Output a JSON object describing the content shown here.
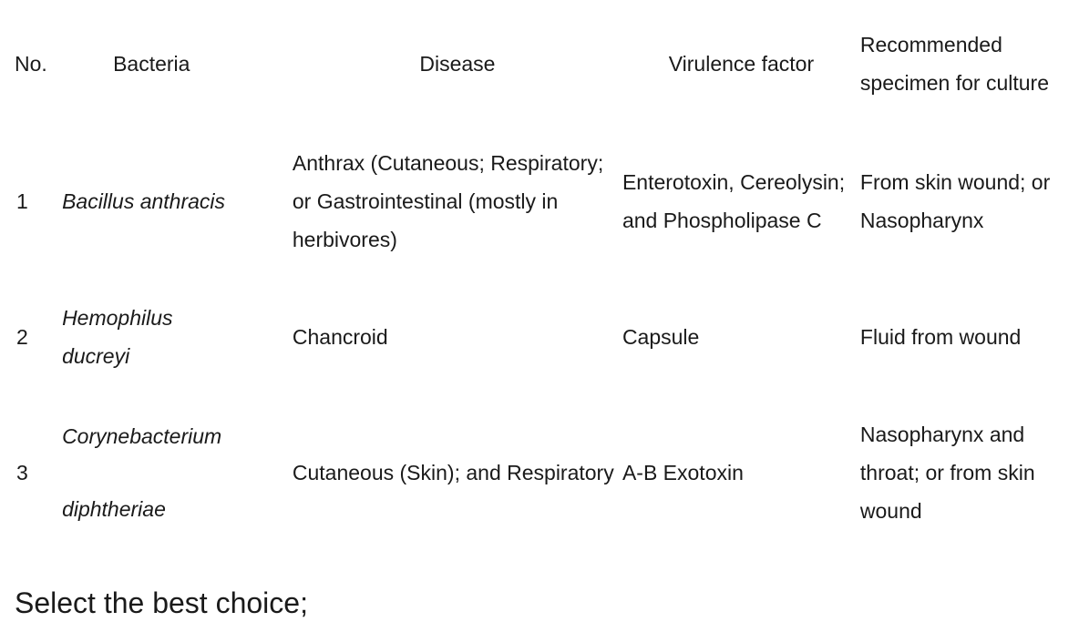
{
  "table": {
    "headers": {
      "no": "No.",
      "bacteria": "Bacteria",
      "disease": "Disease",
      "virulence": "Virulence factor",
      "specimen_line1": "Recommended",
      "specimen_line2": "specimen for culture"
    },
    "rows": [
      {
        "no": "1",
        "bacteria_line1": "Bacillus anthracis",
        "bacteria_line2": "",
        "disease_line1": "Anthrax (Cutaneous; Respiratory;",
        "disease_line2": "or Gastrointestinal (mostly in",
        "disease_line3": "herbivores)",
        "virulence_line1": "Enterotoxin, Cereolysin;",
        "virulence_line2": "and Phospholipase C",
        "specimen_line1": "From skin wound; or",
        "specimen_line2": "Nasopharynx",
        "specimen_line3": ""
      },
      {
        "no": "2",
        "bacteria_line1": "Hemophilus",
        "bacteria_line2": "ducreyi",
        "disease_line1": "Chancroid",
        "disease_line2": "",
        "disease_line3": "",
        "virulence_line1": "Capsule",
        "virulence_line2": "",
        "specimen_line1": "Fluid from wound",
        "specimen_line2": "",
        "specimen_line3": ""
      },
      {
        "no": "3",
        "bacteria_line1": "Corynebacterium",
        "bacteria_line2": "diphtheriae",
        "disease_line1": "Cutaneous (Skin); and Respiratory",
        "disease_line2": "",
        "disease_line3": "",
        "virulence_line1": "A-B Exotoxin",
        "virulence_line2": "",
        "specimen_line1": "Nasopharynx and",
        "specimen_line2": "throat; or from skin",
        "specimen_line3": "wound"
      }
    ]
  },
  "prompt": "Select the best choice;"
}
